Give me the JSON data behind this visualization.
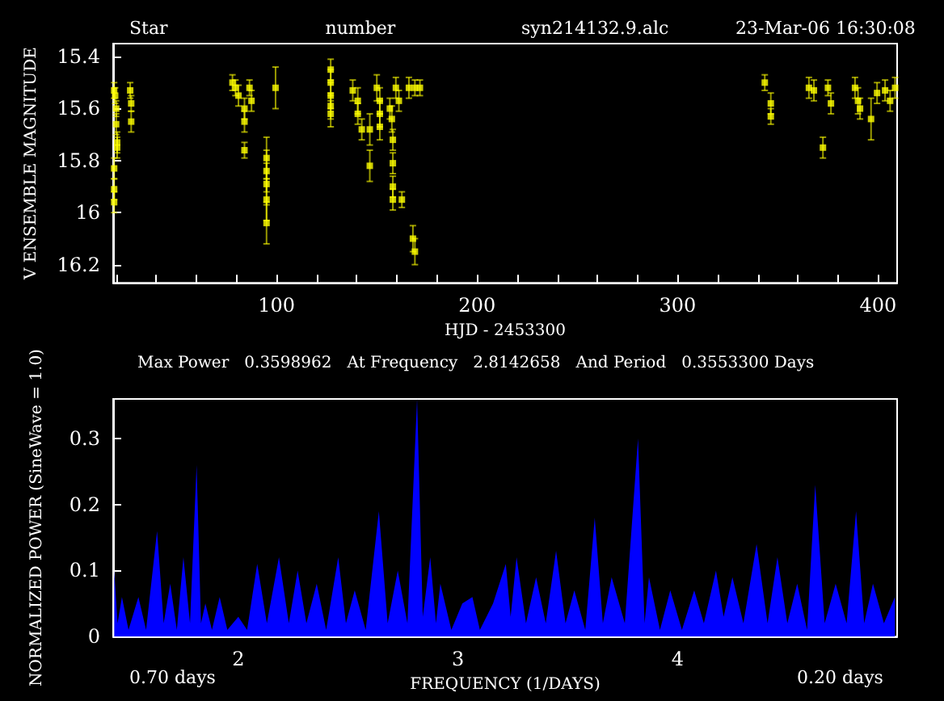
{
  "chart_data": [
    {
      "type": "scatter",
      "annotations": [
        "Star",
        "number",
        "syn214132.9.alc",
        "23-Mar-06 16:30:08"
      ],
      "xlabel": "HJD - 2453300",
      "ylabel": "V ENSEMBLE MAGNITUDE",
      "xlim": [
        18.5,
        409.5
      ],
      "xticks": [
        {
          "value": 20,
          "label": null
        },
        {
          "value": 40,
          "label": null
        },
        {
          "value": 60,
          "label": null
        },
        {
          "value": 80,
          "label": null
        },
        100,
        {
          "value": 120,
          "label": null
        },
        {
          "value": 140,
          "label": null
        },
        {
          "value": 160,
          "label": null
        },
        {
          "value": 180,
          "label": null
        },
        200,
        {
          "value": 220,
          "label": null
        },
        {
          "value": 240,
          "label": null
        },
        {
          "value": 260,
          "label": null
        },
        {
          "value": 280,
          "label": null
        },
        300,
        {
          "value": 320,
          "label": null
        },
        {
          "value": 340,
          "label": null
        },
        {
          "value": 360,
          "label": null
        },
        {
          "value": 380,
          "label": null
        },
        400
      ],
      "ylim": [
        16.27,
        15.35
      ],
      "yticks": [
        15.4,
        15.6,
        15.8,
        16,
        16.2
      ],
      "marker": "square",
      "grid": false,
      "series": [
        {
          "color": "#ffff00",
          "x": [
            19,
            19.5,
            19,
            19,
            19,
            20,
            20,
            20.5,
            20.5,
            27,
            27.5,
            27.5,
            78,
            79.5,
            81,
            84,
            84,
            84,
            86.5,
            87.5,
            95,
            95,
            95,
            95,
            95,
            99.5,
            127,
            127,
            127,
            127,
            127,
            138,
            140.5,
            140.5,
            142.5,
            146.5,
            146.5,
            150,
            151.5,
            151.5,
            151.5,
            156.5,
            157.5,
            158,
            158,
            158,
            158,
            159.5,
            161,
            162.5,
            166,
            169,
            171.5,
            168,
            169,
            343.5,
            346.5,
            346.5,
            365.5,
            368,
            372.5,
            375,
            376.5,
            388.5,
            390,
            391,
            396.5,
            399.5,
            403.5,
            406,
            408.5
          ],
          "values": [
            15.53,
            15.55,
            15.83,
            15.91,
            15.96,
            15.6,
            15.66,
            15.73,
            15.75,
            15.53,
            15.58,
            15.65,
            15.5,
            15.52,
            15.55,
            15.6,
            15.65,
            15.76,
            15.52,
            15.57,
            15.79,
            15.84,
            15.89,
            15.95,
            16.04,
            15.52,
            15.45,
            15.5,
            15.55,
            15.59,
            15.62,
            15.53,
            15.57,
            15.62,
            15.68,
            15.68,
            15.82,
            15.52,
            15.57,
            15.62,
            15.67,
            15.6,
            15.64,
            15.72,
            15.81,
            15.9,
            15.95,
            15.52,
            15.57,
            15.95,
            15.52,
            15.52,
            15.52,
            16.1,
            16.15,
            15.5,
            15.58,
            15.63,
            15.52,
            15.53,
            15.75,
            15.52,
            15.58,
            15.52,
            15.57,
            15.6,
            15.64,
            15.54,
            15.53,
            15.57,
            15.52
          ],
          "errors": [
            0.03,
            0.03,
            0.04,
            0.04,
            0.04,
            0.03,
            0.04,
            0.04,
            0.04,
            0.03,
            0.03,
            0.04,
            0.03,
            0.03,
            0.04,
            0.04,
            0.04,
            0.03,
            0.03,
            0.04,
            0.08,
            0.08,
            0.08,
            0.08,
            0.08,
            0.08,
            0.04,
            0.05,
            0.05,
            0.05,
            0.05,
            0.04,
            0.05,
            0.04,
            0.04,
            0.06,
            0.06,
            0.05,
            0.05,
            0.05,
            0.05,
            0.04,
            0.05,
            0.04,
            0.04,
            0.04,
            0.04,
            0.04,
            0.04,
            0.03,
            0.04,
            0.03,
            0.03,
            0.05,
            0.05,
            0.03,
            0.04,
            0.03,
            0.04,
            0.04,
            0.04,
            0.03,
            0.04,
            0.04,
            0.05,
            0.04,
            0.08,
            0.04,
            0.04,
            0.04,
            0.04
          ]
        }
      ]
    },
    {
      "type": "area",
      "title": "Max Power   0.3598962   At Frequency   2.8142658   And Period   0.3553300 Days",
      "annotations": [
        "0.70 days",
        "0.20 days"
      ],
      "xlabel": "FREQUENCY (1/DAYS)",
      "ylabel": "NORMALIZED POWER (SineWave = 1.0)",
      "xlim": [
        1.43,
        5.0
      ],
      "xticks": [
        2,
        3,
        4
      ],
      "ylim": [
        0,
        0.36
      ],
      "yticks": [
        0,
        0.1,
        0.2,
        0.3
      ],
      "marker": "none",
      "grid": false,
      "series": [
        {
          "color": "#0000ff",
          "x": [
            1.435,
            1.45,
            1.47,
            1.5,
            1.545,
            1.58,
            1.63,
            1.66,
            1.69,
            1.72,
            1.75,
            1.78,
            1.81,
            1.83,
            1.85,
            1.88,
            1.915,
            1.95,
            2.0,
            2.04,
            2.086,
            2.13,
            2.185,
            2.23,
            2.27,
            2.31,
            2.357,
            2.4,
            2.455,
            2.49,
            2.53,
            2.58,
            2.64,
            2.68,
            2.726,
            2.77,
            2.814,
            2.84,
            2.874,
            2.9,
            2.92,
            2.97,
            3.02,
            3.066,
            3.1,
            3.16,
            3.218,
            3.24,
            3.267,
            3.31,
            3.356,
            3.4,
            3.447,
            3.49,
            3.53,
            3.58,
            3.623,
            3.66,
            3.7,
            3.76,
            3.82,
            3.85,
            3.87,
            3.92,
            3.967,
            4.02,
            4.076,
            4.12,
            4.175,
            4.21,
            4.25,
            4.3,
            4.36,
            4.41,
            4.455,
            4.5,
            4.545,
            4.59,
            4.627,
            4.67,
            4.72,
            4.77,
            4.813,
            4.85,
            4.89,
            4.94,
            4.99
          ],
          "values": [
            0.1,
            0.02,
            0.06,
            0.01,
            0.06,
            0.01,
            0.16,
            0.02,
            0.08,
            0.01,
            0.12,
            0.02,
            0.26,
            0.02,
            0.05,
            0.01,
            0.06,
            0.01,
            0.03,
            0.01,
            0.11,
            0.02,
            0.12,
            0.02,
            0.1,
            0.02,
            0.08,
            0.01,
            0.12,
            0.02,
            0.07,
            0.01,
            0.19,
            0.02,
            0.1,
            0.02,
            0.36,
            0.03,
            0.12,
            0.02,
            0.08,
            0.01,
            0.05,
            0.06,
            0.01,
            0.05,
            0.11,
            0.03,
            0.12,
            0.02,
            0.09,
            0.02,
            0.13,
            0.02,
            0.07,
            0.01,
            0.18,
            0.02,
            0.09,
            0.02,
            0.3,
            0.02,
            0.09,
            0.01,
            0.07,
            0.01,
            0.07,
            0.02,
            0.1,
            0.03,
            0.09,
            0.02,
            0.14,
            0.02,
            0.12,
            0.02,
            0.08,
            0.01,
            0.23,
            0.02,
            0.08,
            0.02,
            0.19,
            0.02,
            0.08,
            0.02,
            0.06
          ]
        }
      ]
    }
  ]
}
